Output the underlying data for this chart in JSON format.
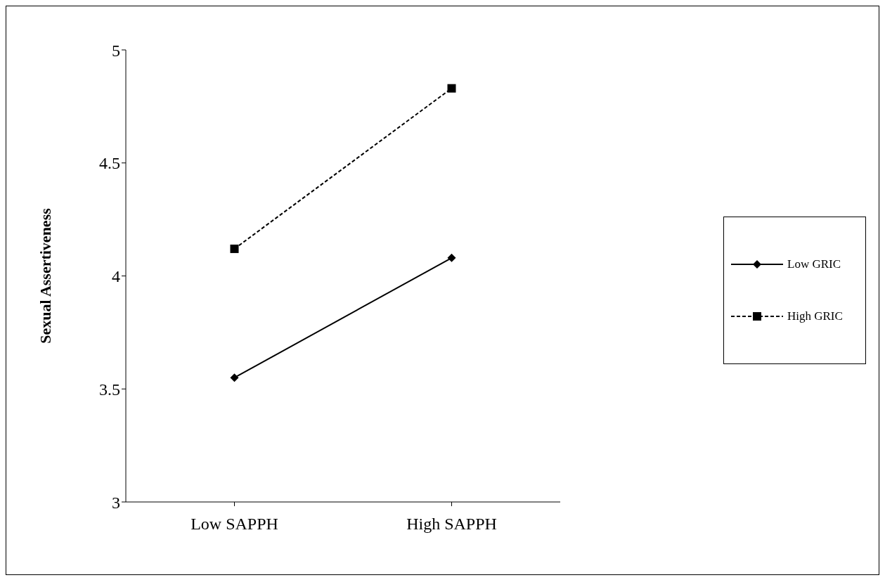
{
  "chart_data": {
    "type": "line",
    "ylabel": "Sexual Assertiveness",
    "categories": [
      "Low SAPPH",
      "High SAPPH"
    ],
    "series": [
      {
        "name": "Low GRIC",
        "color": "#000000",
        "values": [
          3.55,
          4.08
        ],
        "marker": "diamond",
        "line_style": "solid"
      },
      {
        "name": "High GRIC",
        "color": "#000000",
        "values": [
          4.12,
          4.83
        ],
        "marker": "square",
        "line_style": "dashed"
      }
    ],
    "ylim": [
      3,
      5
    ],
    "yticks": [
      3,
      3.5,
      4,
      4.5,
      5
    ],
    "grid": false,
    "legend": "right"
  }
}
